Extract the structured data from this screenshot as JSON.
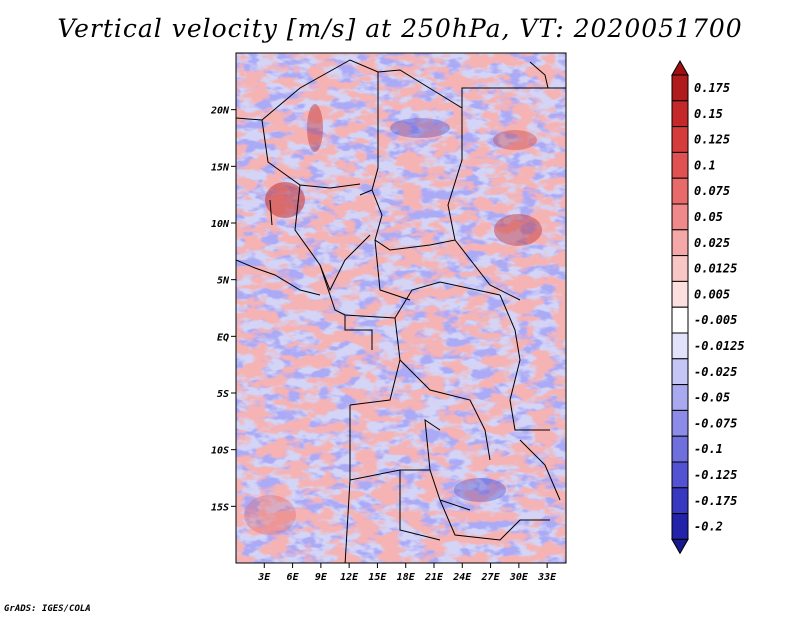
{
  "title": "Vertical velocity [m/s] at 250hPa, VT: 2020051700",
  "credit": "GrADS: IGES/COLA",
  "map": {
    "lat_range": [
      -20,
      25
    ],
    "lon_range": [
      0,
      35
    ],
    "lat_ticks": [
      {
        "value": 20,
        "label": "20N"
      },
      {
        "value": 15,
        "label": "15N"
      },
      {
        "value": 10,
        "label": "10N"
      },
      {
        "value": 5,
        "label": "5N"
      },
      {
        "value": 0,
        "label": "EQ"
      },
      {
        "value": -5,
        "label": "5S"
      },
      {
        "value": -10,
        "label": "10S"
      },
      {
        "value": -15,
        "label": "15S"
      }
    ],
    "lon_ticks": [
      {
        "value": 3,
        "label": "3E"
      },
      {
        "value": 6,
        "label": "6E"
      },
      {
        "value": 9,
        "label": "9E"
      },
      {
        "value": 12,
        "label": "12E"
      },
      {
        "value": 15,
        "label": "15E"
      },
      {
        "value": 18,
        "label": "18E"
      },
      {
        "value": 21,
        "label": "21E"
      },
      {
        "value": 24,
        "label": "24E"
      },
      {
        "value": 27,
        "label": "27E"
      },
      {
        "value": 30,
        "label": "30E"
      },
      {
        "value": 33,
        "label": "33E"
      }
    ]
  },
  "colorbar": {
    "levels": [
      {
        "label": "0.175",
        "color": "#b01c1c"
      },
      {
        "label": "0.15",
        "color": "#c42828"
      },
      {
        "label": "0.125",
        "color": "#d63c3c"
      },
      {
        "label": "0.1",
        "color": "#e05252"
      },
      {
        "label": "0.075",
        "color": "#e86a6a"
      },
      {
        "label": "0.05",
        "color": "#f08a8a"
      },
      {
        "label": "0.025",
        "color": "#f5a8a8"
      },
      {
        "label": "0.0125",
        "color": "#f9c6c6"
      },
      {
        "label": "0.005",
        "color": "#fce0e0"
      },
      {
        "label": "-0.005",
        "color": "#ffffff"
      },
      {
        "label": "-0.0125",
        "color": "#e2e2fb"
      },
      {
        "label": "-0.025",
        "color": "#c6c6f6"
      },
      {
        "label": "-0.05",
        "color": "#a9a9f0"
      },
      {
        "label": "-0.075",
        "color": "#8c8ce8"
      },
      {
        "label": "-0.1",
        "color": "#6f6fde"
      },
      {
        "label": "-0.125",
        "color": "#5252d2"
      },
      {
        "label": "-0.175",
        "color": "#3838c0"
      },
      {
        "label": "-0.2",
        "color": "#2222aa"
      }
    ],
    "top_color": "#a01010",
    "bottom_color": "#18188f"
  }
}
